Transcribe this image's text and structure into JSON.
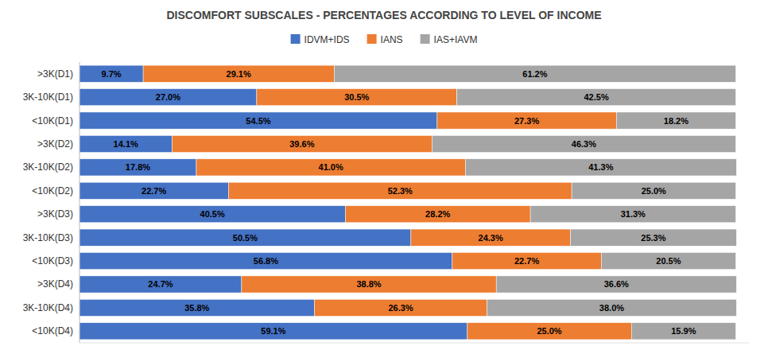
{
  "chart_data": {
    "type": "bar",
    "orientation": "horizontal",
    "stacked": true,
    "data_labels": true,
    "grid": false,
    "legend": "top",
    "tick_labels": "y",
    "title": "DISCOMFORT SUBSCALES - PERCENTAGES ACCORDING TO LEVEL OF INCOME",
    "categories": [
      ">3K(D1)",
      "3K-10K(D1)",
      "<10K(D1)",
      ">3K(D2)",
      "3K-10K(D2)",
      "<10K(D2)",
      ">3K(D3)",
      "3K-10K(D3)",
      "<10K(D3)",
      ">3K(D4)",
      "3K-10K(D4)",
      "<10K(D4)"
    ],
    "xlim": [
      0,
      102
    ],
    "series": [
      {
        "name": "IDVM+IDS",
        "color": "#4472C4",
        "values": [
          9.7,
          27.0,
          54.5,
          14.1,
          17.8,
          22.7,
          40.5,
          50.5,
          56.8,
          24.7,
          35.8,
          59.1
        ],
        "value_labels": [
          "9.7%",
          "27.0%",
          "54.5%",
          "14.1%",
          "17.8%",
          "22.7%",
          "40.5%",
          "50.5%",
          "56.8%",
          "24.7%",
          "35.8%",
          "59.1%"
        ]
      },
      {
        "name": "IANS",
        "color": "#ED7D31",
        "values": [
          29.1,
          30.5,
          27.3,
          39.6,
          41.0,
          52.3,
          28.2,
          24.3,
          22.7,
          38.8,
          26.3,
          25.0
        ],
        "value_labels": [
          "29.1%",
          "30.5%",
          "27.3%",
          "39.6%",
          "41.0%",
          "52.3%",
          "28.2%",
          "24.3%",
          "22.7%",
          "38.8%",
          "26.3%",
          "25.0%"
        ]
      },
      {
        "name": "IAS+IAVM",
        "color": "#A5A5A5",
        "values": [
          61.2,
          42.5,
          18.2,
          46.3,
          41.3,
          25.0,
          31.3,
          25.3,
          20.5,
          36.6,
          38.0,
          15.9
        ],
        "value_labels": [
          "61.2%",
          "42.5%",
          "18.2%",
          "46.3%",
          "41.3%",
          "25.0%",
          "31.3%",
          "25.3%",
          "20.5%",
          "36.6%",
          "38.0%",
          "15.9%"
        ]
      }
    ]
  }
}
